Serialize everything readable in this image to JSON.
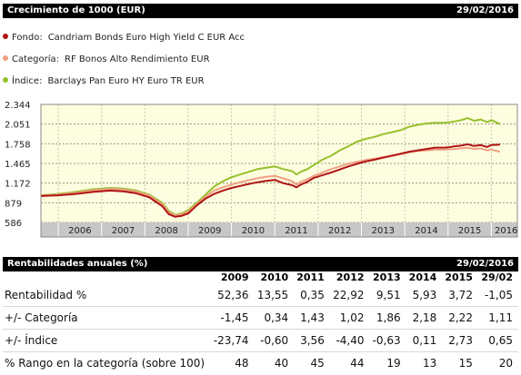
{
  "header": {
    "title": "Crecimiento de 1000 (EUR)",
    "date": "29/02/2016"
  },
  "legend": [
    {
      "category": "Fondo:",
      "name": "Candriam Bonds Euro High Yield C EUR Acc",
      "color": "#b01515"
    },
    {
      "category": "Categoría:",
      "name": "RF Bonos Alto Rendimiento EUR",
      "color": "#f0a083"
    },
    {
      "category": "Índice:",
      "name": "Barclays Pan Euro HY Euro TR EUR",
      "color": "#96c22c"
    }
  ],
  "chart_data": {
    "type": "line",
    "y_ticks": [
      "2.344",
      "2.051",
      "1.758",
      "1.465",
      "1.172",
      "879",
      "586"
    ],
    "x_ticks": [
      "2006",
      "2007",
      "2008",
      "2009",
      "2010",
      "2011",
      "2012",
      "2013",
      "2014",
      "2015",
      "2016"
    ],
    "ylim": [
      586,
      2344
    ],
    "xlim": [
      2005.6,
      2016.6
    ],
    "grid": true,
    "series": [
      {
        "name": "Índice",
        "color": "#96c22c",
        "x": [
          2005.6,
          2006.0,
          2006.4,
          2006.8,
          2007.2,
          2007.5,
          2007.8,
          2008.1,
          2008.4,
          2008.55,
          2008.7,
          2008.85,
          2009.0,
          2009.2,
          2009.4,
          2009.6,
          2009.8,
          2010.0,
          2010.2,
          2010.4,
          2010.6,
          2010.8,
          2011.0,
          2011.2,
          2011.4,
          2011.5,
          2011.6,
          2011.75,
          2011.9,
          2012.1,
          2012.3,
          2012.5,
          2012.7,
          2012.9,
          2013.1,
          2013.3,
          2013.5,
          2013.7,
          2013.9,
          2014.1,
          2014.3,
          2014.5,
          2014.7,
          2014.9,
          2015.0,
          2015.15,
          2015.3,
          2015.45,
          2015.6,
          2015.75,
          2015.9,
          2016.0,
          2016.2
        ],
        "y": [
          990,
          1010,
          1040,
          1080,
          1100,
          1090,
          1060,
          1000,
          880,
          760,
          700,
          720,
          770,
          880,
          1000,
          1120,
          1200,
          1260,
          1300,
          1340,
          1380,
          1400,
          1420,
          1380,
          1350,
          1300,
          1340,
          1380,
          1440,
          1520,
          1580,
          1660,
          1720,
          1790,
          1830,
          1860,
          1900,
          1930,
          1960,
          2010,
          2040,
          2060,
          2070,
          2070,
          2075,
          2090,
          2110,
          2140,
          2100,
          2120,
          2080,
          2110,
          2050
        ]
      },
      {
        "name": "Categoría",
        "color": "#f0a083",
        "x": [
          2005.6,
          2006.0,
          2006.4,
          2006.8,
          2007.2,
          2007.5,
          2007.8,
          2008.1,
          2008.4,
          2008.55,
          2008.7,
          2008.85,
          2009.0,
          2009.2,
          2009.4,
          2009.6,
          2009.8,
          2010.0,
          2010.2,
          2010.4,
          2010.6,
          2010.8,
          2011.0,
          2011.2,
          2011.4,
          2011.5,
          2011.6,
          2011.75,
          2011.9,
          2012.1,
          2012.3,
          2012.5,
          2012.7,
          2012.9,
          2013.1,
          2013.3,
          2013.5,
          2013.7,
          2013.9,
          2014.1,
          2014.3,
          2014.5,
          2014.7,
          2014.9,
          2015.0,
          2015.15,
          2015.3,
          2015.45,
          2015.6,
          2015.75,
          2015.9,
          2016.0,
          2016.2
        ],
        "y": [
          985,
          1000,
          1025,
          1065,
          1085,
          1075,
          1045,
          985,
          860,
          740,
          690,
          705,
          745,
          860,
          970,
          1060,
          1110,
          1150,
          1185,
          1215,
          1245,
          1265,
          1280,
          1240,
          1200,
          1150,
          1190,
          1230,
          1280,
          1330,
          1380,
          1420,
          1460,
          1490,
          1515,
          1535,
          1560,
          1580,
          1600,
          1630,
          1650,
          1660,
          1670,
          1670,
          1675,
          1680,
          1690,
          1700,
          1680,
          1690,
          1660,
          1670,
          1640
        ]
      },
      {
        "name": "Fondo",
        "color": "#b01515",
        "x": [
          2005.6,
          2006.0,
          2006.4,
          2006.8,
          2007.2,
          2007.5,
          2007.8,
          2008.1,
          2008.4,
          2008.55,
          2008.7,
          2008.85,
          2009.0,
          2009.2,
          2009.4,
          2009.6,
          2009.8,
          2010.0,
          2010.2,
          2010.4,
          2010.6,
          2010.8,
          2011.0,
          2011.2,
          2011.4,
          2011.5,
          2011.6,
          2011.75,
          2011.9,
          2012.1,
          2012.3,
          2012.5,
          2012.7,
          2012.9,
          2013.1,
          2013.3,
          2013.5,
          2013.7,
          2013.9,
          2014.1,
          2014.3,
          2014.5,
          2014.7,
          2014.9,
          2015.0,
          2015.15,
          2015.3,
          2015.45,
          2015.6,
          2015.75,
          2015.9,
          2016.0,
          2016.2
        ],
        "y": [
          980,
          990,
          1010,
          1040,
          1060,
          1050,
          1020,
          960,
          830,
          710,
          670,
          685,
          720,
          840,
          940,
          1010,
          1060,
          1100,
          1130,
          1160,
          1185,
          1205,
          1220,
          1170,
          1140,
          1110,
          1150,
          1190,
          1250,
          1290,
          1330,
          1375,
          1420,
          1460,
          1495,
          1520,
          1550,
          1580,
          1610,
          1640,
          1660,
          1680,
          1700,
          1700,
          1705,
          1720,
          1730,
          1750,
          1725,
          1740,
          1710,
          1740,
          1745
        ]
      }
    ]
  },
  "table": {
    "title": "Rentabilidades anuales (%)",
    "date": "29/02/2016",
    "columns": [
      "2009",
      "2010",
      "2011",
      "2012",
      "2013",
      "2014",
      "2015",
      "29/02"
    ],
    "rows": [
      {
        "label": "Rentabilidad %",
        "values": [
          "52,36",
          "13,55",
          "0,35",
          "22,92",
          "9,51",
          "5,93",
          "3,72",
          "-1,05"
        ]
      },
      {
        "label": "+/- Categoría",
        "values": [
          "-1,45",
          "0,34",
          "1,43",
          "1,02",
          "1,86",
          "2,18",
          "2,22",
          "1,11"
        ]
      },
      {
        "label": "+/- Índice",
        "values": [
          "-23,74",
          "-0,60",
          "3,56",
          "-4,40",
          "-0,63",
          "0,11",
          "2,73",
          "0,65"
        ]
      },
      {
        "label": "% Rango en la categoría (sobre 100)",
        "values": [
          "48",
          "40",
          "45",
          "44",
          "19",
          "13",
          "15",
          "20"
        ]
      }
    ]
  }
}
